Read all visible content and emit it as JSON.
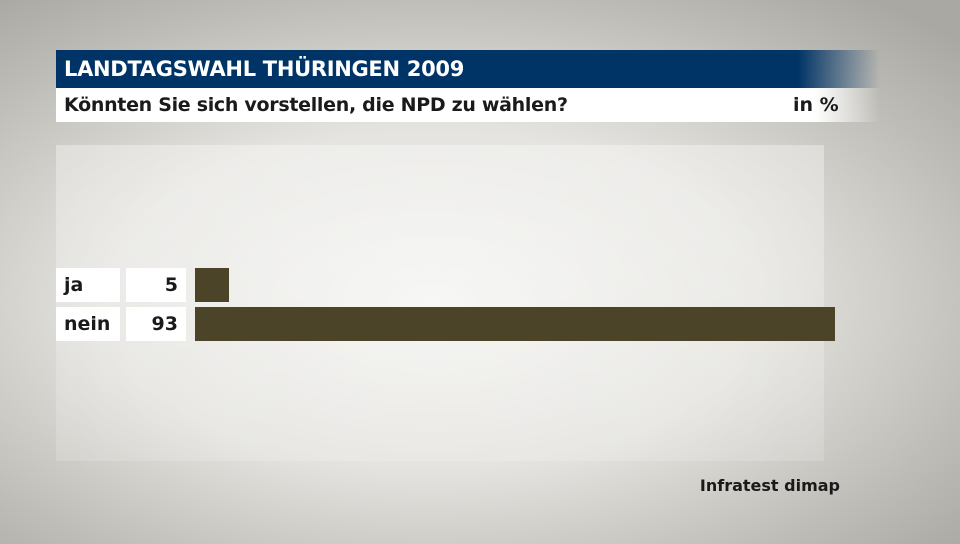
{
  "header": {
    "title": "LANDTAGSWAHL THÜRINGEN 2009",
    "subtitle": "Könnten Sie sich vorstellen, die NPD zu wählen?",
    "unit": "in %"
  },
  "source": "Infratest dimap",
  "colors": {
    "title_bar": "#003366",
    "bar": "#4b4429"
  },
  "chart_data": {
    "type": "bar",
    "orientation": "horizontal",
    "title": "LANDTAGSWAHL THÜRINGEN 2009",
    "subtitle": "Könnten Sie sich vorstellen, die NPD zu wählen?",
    "unit": "in %",
    "categories": [
      "ja",
      "nein"
    ],
    "values": [
      5,
      93
    ],
    "xlim": [
      0,
      93
    ]
  }
}
